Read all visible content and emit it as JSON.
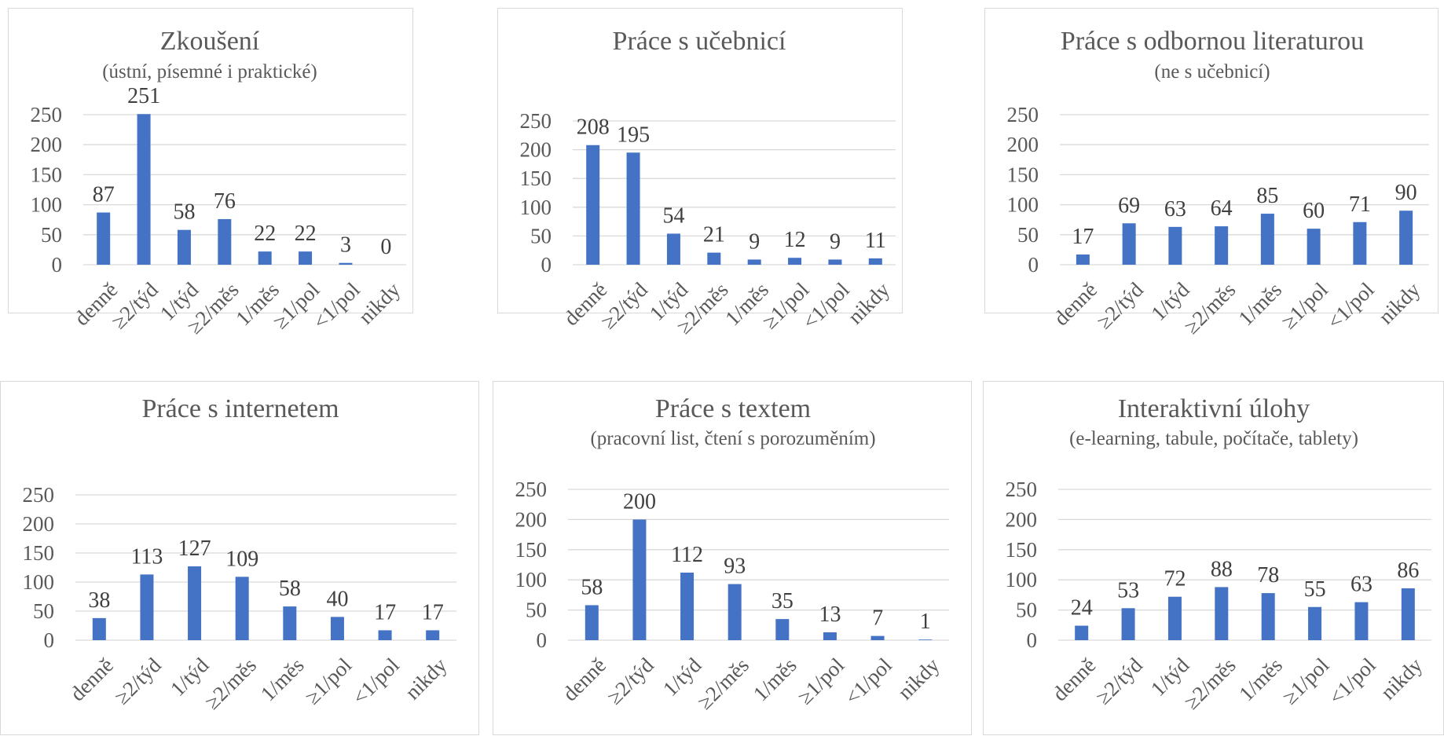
{
  "colors": {
    "bar": "#4472c4"
  },
  "chart_data": [
    {
      "type": "bar",
      "title": "Zkoušení",
      "subtitle": "(ústní, písemné i praktické)",
      "categories": [
        "denně",
        "≥2/týd",
        "1/týd",
        "≥2/měs",
        "1/měs",
        "≥1/pol",
        "<1/pol",
        "nikdy"
      ],
      "values": [
        87,
        251,
        58,
        76,
        22,
        22,
        3,
        0
      ],
      "yticks": [
        0,
        50,
        100,
        150,
        200,
        250
      ],
      "ylim": [
        0,
        250
      ],
      "grid": true,
      "data_labels": true
    },
    {
      "type": "bar",
      "title": "Práce s učebnicí",
      "subtitle": "",
      "categories": [
        "denně",
        "≥2/týd",
        "1/týd",
        "≥2/měs",
        "1/měs",
        "≥1/pol",
        "<1/pol",
        "nikdy"
      ],
      "values": [
        208,
        195,
        54,
        21,
        9,
        12,
        9,
        11
      ],
      "yticks": [
        0,
        50,
        100,
        150,
        200,
        250
      ],
      "ylim": [
        0,
        250
      ],
      "grid": true,
      "data_labels": true
    },
    {
      "type": "bar",
      "title": "Práce s odbornou literaturou",
      "subtitle": "(ne s učebnicí)",
      "categories": [
        "denně",
        "≥2/týd",
        "1/týd",
        "≥2/měs",
        "1/měs",
        "≥1/pol",
        "<1/pol",
        "nikdy"
      ],
      "values": [
        17,
        69,
        63,
        64,
        85,
        60,
        71,
        90
      ],
      "yticks": [
        0,
        50,
        100,
        150,
        200,
        250
      ],
      "ylim": [
        0,
        250
      ],
      "grid": true,
      "data_labels": true
    },
    {
      "type": "bar",
      "title": "Práce s internetem",
      "subtitle": "",
      "categories": [
        "denně",
        "≥2/týd",
        "1/týd",
        "≥2/měs",
        "1/měs",
        "≥1/pol",
        "<1/pol",
        "nikdy"
      ],
      "values": [
        38,
        113,
        127,
        109,
        58,
        40,
        17,
        17
      ],
      "yticks": [
        0,
        50,
        100,
        150,
        200,
        250
      ],
      "ylim": [
        0,
        250
      ],
      "grid": true,
      "data_labels": true
    },
    {
      "type": "bar",
      "title": "Práce s textem",
      "subtitle": "(pracovní list, čtení s porozuměním)",
      "categories": [
        "denně",
        "≥2/týd",
        "1/týd",
        "≥2/měs",
        "1/měs",
        "≥1/pol",
        "<1/pol",
        "nikdy"
      ],
      "values": [
        58,
        200,
        112,
        93,
        35,
        13,
        7,
        1
      ],
      "yticks": [
        0,
        50,
        100,
        150,
        200,
        250
      ],
      "ylim": [
        0,
        250
      ],
      "grid": true,
      "data_labels": true
    },
    {
      "type": "bar",
      "title": "Interaktivní úlohy",
      "subtitle": "(e-learning, tabule, počítače, tablety)",
      "categories": [
        "denně",
        "≥2/týd",
        "1/týd",
        "≥2/měs",
        "1/měs",
        "≥1/pol",
        "<1/pol",
        "nikdy"
      ],
      "values": [
        24,
        53,
        72,
        88,
        78,
        55,
        63,
        86
      ],
      "yticks": [
        0,
        50,
        100,
        150,
        200,
        250
      ],
      "ylim": [
        0,
        250
      ],
      "grid": true,
      "data_labels": true
    }
  ]
}
